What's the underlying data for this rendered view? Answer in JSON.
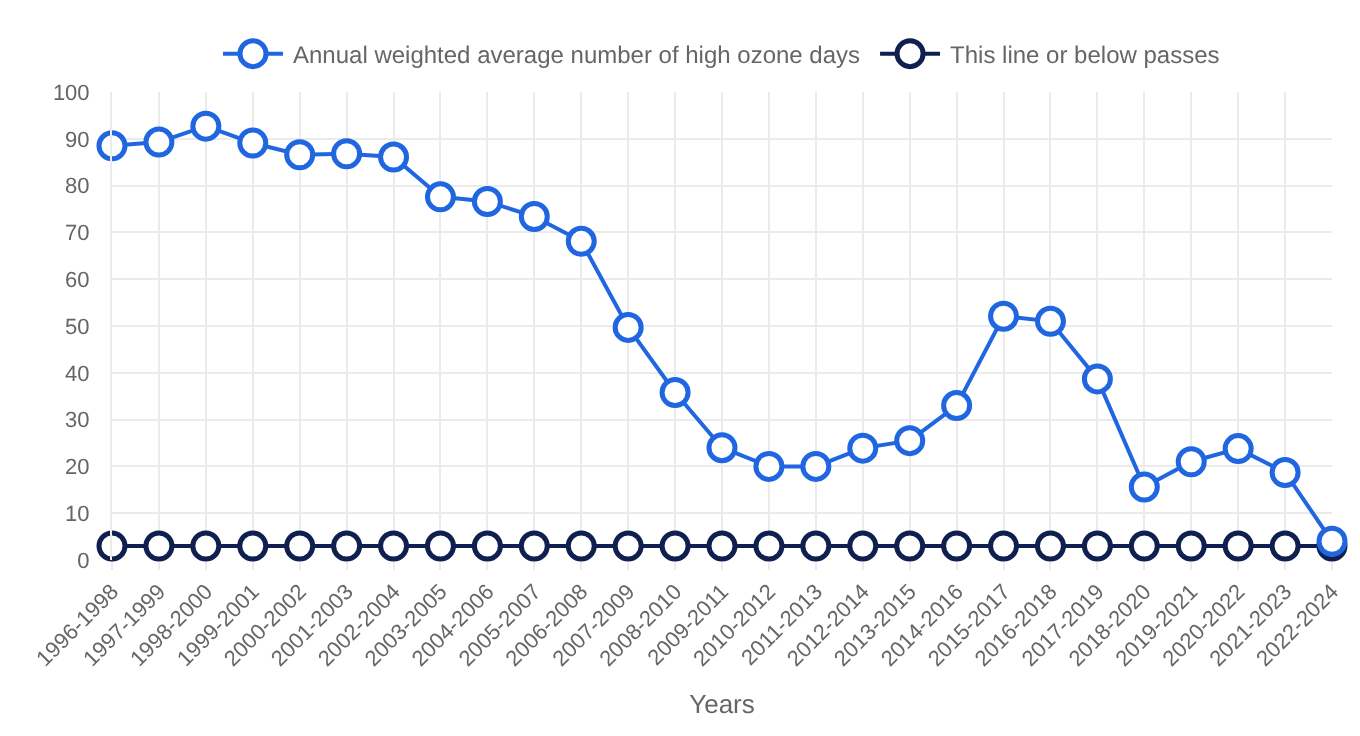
{
  "chart_data": {
    "type": "line",
    "xlabel": "Years",
    "categories": [
      "1996-1998",
      "1997-1999",
      "1998-2000",
      "1999-2001",
      "2000-2002",
      "2001-2003",
      "2002-2004",
      "2003-2005",
      "2004-2006",
      "2005-2007",
      "2006-2008",
      "2007-2009",
      "2008-2010",
      "2009-2011",
      "2010-2012",
      "2011-2013",
      "2012-2014",
      "2013-2015",
      "2014-2016",
      "2015-2017",
      "2016-2018",
      "2017-2019",
      "2018-2020",
      "2019-2021",
      "2020-2022",
      "2021-2023",
      "2022-2024"
    ],
    "series": [
      {
        "name": "Annual weighted average number of high ozone days",
        "color": "#1f66e0",
        "values": [
          88.5,
          89.3,
          92.7,
          89.1,
          86.6,
          86.8,
          86.1,
          77.6,
          76.6,
          73.4,
          68.1,
          49.7,
          35.8,
          24.0,
          20.0,
          20.0,
          23.9,
          25.5,
          33.0,
          52.1,
          51.0,
          38.7,
          15.6,
          21.0,
          23.8,
          18.7,
          4.0
        ]
      },
      {
        "name": "This line or below passes",
        "color": "#0f1f4f",
        "values": [
          3,
          3,
          3,
          3,
          3,
          3,
          3,
          3,
          3,
          3,
          3,
          3,
          3,
          3,
          3,
          3,
          3,
          3,
          3,
          3,
          3,
          3,
          3,
          3,
          3,
          3,
          3
        ]
      }
    ],
    "ylim": [
      0,
      100
    ],
    "yticks": [
      0,
      10,
      20,
      30,
      40,
      50,
      60,
      70,
      80,
      90,
      100
    ],
    "grid": true,
    "legend": "top",
    "marker": "circle",
    "line_style": "solid"
  }
}
